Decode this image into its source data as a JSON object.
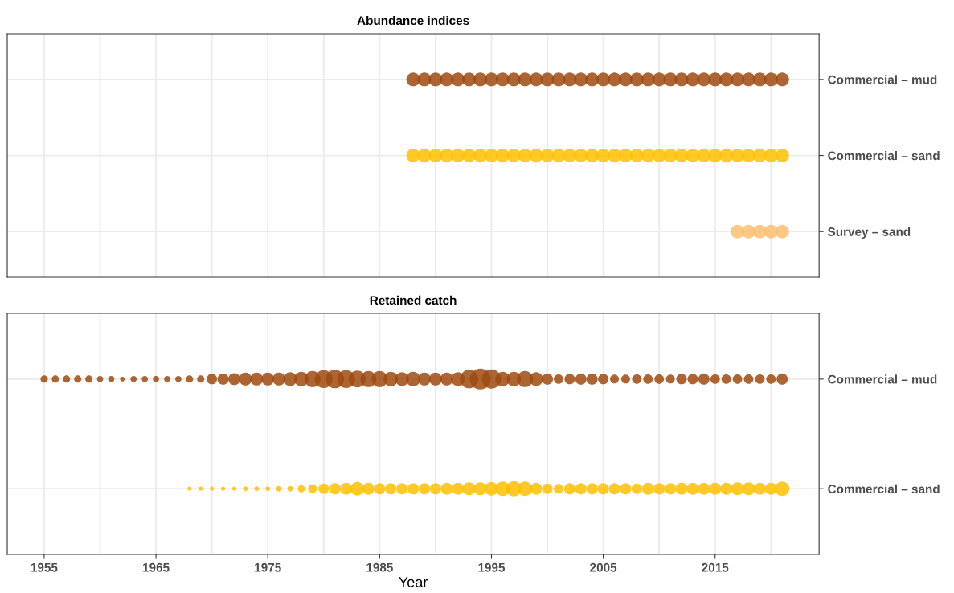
{
  "chart_data": [
    {
      "type": "bubble",
      "title": "Abundance indices",
      "orientation": "horizontal",
      "categories": [
        "Commercial – mud",
        "Commercial – sand",
        "Survey – sand"
      ],
      "xlim": [
        1951.7,
        2024.3
      ],
      "xticks": [
        1955,
        {
          "value": 1960,
          "label": null
        },
        1965,
        {
          "value": 1970,
          "label": null
        },
        1975,
        {
          "value": 1980,
          "label": null
        },
        1985,
        {
          "value": 1990,
          "label": null
        },
        1995,
        {
          "value": 2000,
          "label": null
        },
        2005,
        {
          "value": 2010,
          "label": null
        },
        2015,
        {
          "value": 2020,
          "label": null
        }
      ],
      "tick_labels": "y",
      "grid": true,
      "series": [
        {
          "values": [
            1988,
            1988,
            null
          ],
          "sizes": [
            1,
            1,
            null
          ],
          "colors": [
            "#9e4a0f",
            "#ffc000",
            null
          ]
        },
        {
          "values": [
            1989,
            1989,
            null
          ],
          "sizes": [
            1,
            1,
            null
          ],
          "colors": [
            "#9e4a0f",
            "#ffc000",
            null
          ]
        },
        {
          "values": [
            1990,
            1990,
            null
          ],
          "sizes": [
            1,
            1,
            null
          ],
          "colors": [
            "#9e4a0f",
            "#ffc000",
            null
          ]
        },
        {
          "values": [
            1991,
            1991,
            null
          ],
          "sizes": [
            1,
            1,
            null
          ],
          "colors": [
            "#9e4a0f",
            "#ffc000",
            null
          ]
        },
        {
          "values": [
            1992,
            1992,
            null
          ],
          "sizes": [
            1,
            1,
            null
          ],
          "colors": [
            "#9e4a0f",
            "#ffc000",
            null
          ]
        },
        {
          "values": [
            1993,
            1993,
            null
          ],
          "sizes": [
            1,
            1,
            null
          ],
          "colors": [
            "#9e4a0f",
            "#ffc000",
            null
          ]
        },
        {
          "values": [
            1994,
            1994,
            null
          ],
          "sizes": [
            1,
            1,
            null
          ],
          "colors": [
            "#9e4a0f",
            "#ffc000",
            null
          ]
        },
        {
          "values": [
            1995,
            1995,
            null
          ],
          "sizes": [
            1,
            1,
            null
          ],
          "colors": [
            "#9e4a0f",
            "#ffc000",
            null
          ]
        },
        {
          "values": [
            1996,
            1996,
            null
          ],
          "sizes": [
            1,
            1,
            null
          ],
          "colors": [
            "#9e4a0f",
            "#ffc000",
            null
          ]
        },
        {
          "values": [
            1997,
            1997,
            null
          ],
          "sizes": [
            1,
            1,
            null
          ],
          "colors": [
            "#9e4a0f",
            "#ffc000",
            null
          ]
        },
        {
          "values": [
            1998,
            1998,
            null
          ],
          "sizes": [
            1,
            1,
            null
          ],
          "colors": [
            "#9e4a0f",
            "#ffc000",
            null
          ]
        },
        {
          "values": [
            1999,
            1999,
            null
          ],
          "sizes": [
            1,
            1,
            null
          ],
          "colors": [
            "#9e4a0f",
            "#ffc000",
            null
          ]
        },
        {
          "values": [
            2000,
            2000,
            null
          ],
          "sizes": [
            1,
            1,
            null
          ],
          "colors": [
            "#9e4a0f",
            "#ffc000",
            null
          ]
        },
        {
          "values": [
            2001,
            2001,
            null
          ],
          "sizes": [
            1,
            1,
            null
          ],
          "colors": [
            "#9e4a0f",
            "#ffc000",
            null
          ]
        },
        {
          "values": [
            2002,
            2002,
            null
          ],
          "sizes": [
            1,
            1,
            null
          ],
          "colors": [
            "#9e4a0f",
            "#ffc000",
            null
          ]
        },
        {
          "values": [
            2003,
            2003,
            null
          ],
          "sizes": [
            1,
            1,
            null
          ],
          "colors": [
            "#9e4a0f",
            "#ffc000",
            null
          ]
        },
        {
          "values": [
            2004,
            2004,
            null
          ],
          "sizes": [
            1,
            1,
            null
          ],
          "colors": [
            "#9e4a0f",
            "#ffc000",
            null
          ]
        },
        {
          "values": [
            2005,
            2005,
            null
          ],
          "sizes": [
            1,
            1,
            null
          ],
          "colors": [
            "#9e4a0f",
            "#ffc000",
            null
          ]
        },
        {
          "values": [
            2006,
            2006,
            null
          ],
          "sizes": [
            1,
            1,
            null
          ],
          "colors": [
            "#9e4a0f",
            "#ffc000",
            null
          ]
        },
        {
          "values": [
            2007,
            2007,
            null
          ],
          "sizes": [
            1,
            1,
            null
          ],
          "colors": [
            "#9e4a0f",
            "#ffc000",
            null
          ]
        },
        {
          "values": [
            2008,
            2008,
            null
          ],
          "sizes": [
            1,
            1,
            null
          ],
          "colors": [
            "#9e4a0f",
            "#ffc000",
            null
          ]
        },
        {
          "values": [
            2009,
            2009,
            null
          ],
          "sizes": [
            1,
            1,
            null
          ],
          "colors": [
            "#9e4a0f",
            "#ffc000",
            null
          ]
        },
        {
          "values": [
            2010,
            2010,
            null
          ],
          "sizes": [
            1,
            1,
            null
          ],
          "colors": [
            "#9e4a0f",
            "#ffc000",
            null
          ]
        },
        {
          "values": [
            2011,
            2011,
            null
          ],
          "sizes": [
            1,
            1,
            null
          ],
          "colors": [
            "#9e4a0f",
            "#ffc000",
            null
          ]
        },
        {
          "values": [
            2012,
            2012,
            null
          ],
          "sizes": [
            1,
            1,
            null
          ],
          "colors": [
            "#9e4a0f",
            "#ffc000",
            null
          ]
        },
        {
          "values": [
            2013,
            2013,
            null
          ],
          "sizes": [
            1,
            1,
            null
          ],
          "colors": [
            "#9e4a0f",
            "#ffc000",
            null
          ]
        },
        {
          "values": [
            2014,
            2014,
            null
          ],
          "sizes": [
            1,
            1,
            null
          ],
          "colors": [
            "#9e4a0f",
            "#ffc000",
            null
          ]
        },
        {
          "values": [
            2015,
            2015,
            null
          ],
          "sizes": [
            1,
            1,
            null
          ],
          "colors": [
            "#9e4a0f",
            "#ffc000",
            null
          ]
        },
        {
          "values": [
            2016,
            2016,
            null
          ],
          "sizes": [
            1,
            1,
            null
          ],
          "colors": [
            "#9e4a0f",
            "#ffc000",
            null
          ]
        },
        {
          "values": [
            2017,
            2017,
            2017
          ],
          "sizes": [
            1,
            1,
            1
          ],
          "colors": [
            "#9e4a0f",
            "#ffc000",
            "#fdbe6e"
          ]
        },
        {
          "values": [
            2018,
            2018,
            2018
          ],
          "sizes": [
            1,
            1,
            1
          ],
          "colors": [
            "#9e4a0f",
            "#ffc000",
            "#fdbe6e"
          ]
        },
        {
          "values": [
            2019,
            2019,
            2019
          ],
          "sizes": [
            1,
            1,
            1
          ],
          "colors": [
            "#9e4a0f",
            "#ffc000",
            "#fdbe6e"
          ]
        },
        {
          "values": [
            2020,
            2020,
            2020
          ],
          "sizes": [
            1,
            1,
            1
          ],
          "colors": [
            "#9e4a0f",
            "#ffc000",
            "#fdbe6e"
          ]
        },
        {
          "values": [
            2021,
            2021,
            2021
          ],
          "sizes": [
            1,
            1,
            1
          ],
          "colors": [
            "#9e4a0f",
            "#ffc000",
            "#fdbe6e"
          ]
        }
      ]
    },
    {
      "type": "bubble",
      "title": "Retained catch",
      "xlabel": "Year",
      "orientation": "horizontal",
      "categories": [
        "Commercial – mud",
        "Commercial – sand"
      ],
      "xlim": [
        1951.7,
        2024.3
      ],
      "xticks": [
        1955,
        {
          "value": 1960,
          "label": null
        },
        1965,
        {
          "value": 1970,
          "label": null
        },
        1975,
        {
          "value": 1980,
          "label": null
        },
        1985,
        {
          "value": 1990,
          "label": null
        },
        1995,
        {
          "value": 2000,
          "label": null
        },
        2005,
        {
          "value": 2010,
          "label": null
        },
        2015,
        {
          "value": 2020,
          "label": null
        }
      ],
      "grid": true,
      "series": [
        {
          "values": [
            1955,
            null
          ],
          "sizes": [
            0.12,
            null
          ],
          "colors": [
            "#9e4a0f",
            null
          ]
        },
        {
          "values": [
            1956,
            null
          ],
          "sizes": [
            0.12,
            null
          ],
          "colors": [
            "#9e4a0f",
            null
          ]
        },
        {
          "values": [
            1957,
            null
          ],
          "sizes": [
            0.12,
            null
          ],
          "colors": [
            "#9e4a0f",
            null
          ]
        },
        {
          "values": [
            1958,
            null
          ],
          "sizes": [
            0.12,
            null
          ],
          "colors": [
            "#9e4a0f",
            null
          ]
        },
        {
          "values": [
            1959,
            null
          ],
          "sizes": [
            0.12,
            null
          ],
          "colors": [
            "#9e4a0f",
            null
          ]
        },
        {
          "values": [
            1960,
            null
          ],
          "sizes": [
            0.09,
            null
          ],
          "colors": [
            "#9e4a0f",
            null
          ]
        },
        {
          "values": [
            1961,
            null
          ],
          "sizes": [
            0.09,
            null
          ],
          "colors": [
            "#9e4a0f",
            null
          ]
        },
        {
          "values": [
            1962,
            null
          ],
          "sizes": [
            0.05,
            null
          ],
          "colors": [
            "#9e4a0f",
            null
          ]
        },
        {
          "values": [
            1963,
            null
          ],
          "sizes": [
            0.09,
            null
          ],
          "colors": [
            "#9e4a0f",
            null
          ]
        },
        {
          "values": [
            1964,
            null
          ],
          "sizes": [
            0.09,
            null
          ],
          "colors": [
            "#9e4a0f",
            null
          ]
        },
        {
          "values": [
            1965,
            null
          ],
          "sizes": [
            0.09,
            null
          ],
          "colors": [
            "#9e4a0f",
            null
          ]
        },
        {
          "values": [
            1966,
            null
          ],
          "sizes": [
            0.09,
            null
          ],
          "colors": [
            "#9e4a0f",
            null
          ]
        },
        {
          "values": [
            1967,
            null
          ],
          "sizes": [
            0.09,
            null
          ],
          "colors": [
            "#9e4a0f",
            null
          ]
        },
        {
          "values": [
            1968,
            1968
          ],
          "sizes": [
            0.12,
            0.04
          ],
          "colors": [
            "#9e4a0f",
            "#ffc000"
          ]
        },
        {
          "values": [
            1969,
            1969
          ],
          "sizes": [
            0.12,
            0.04
          ],
          "colors": [
            "#9e4a0f",
            "#ffc000"
          ]
        },
        {
          "values": [
            1970,
            1970
          ],
          "sizes": [
            0.25,
            0.04
          ],
          "colors": [
            "#9e4a0f",
            "#ffc000"
          ]
        },
        {
          "values": [
            1971,
            1971
          ],
          "sizes": [
            0.29,
            0.04
          ],
          "colors": [
            "#9e4a0f",
            "#ffc000"
          ]
        },
        {
          "values": [
            1972,
            1972
          ],
          "sizes": [
            0.33,
            0.04
          ],
          "colors": [
            "#9e4a0f",
            "#ffc000"
          ]
        },
        {
          "values": [
            1973,
            1973
          ],
          "sizes": [
            0.38,
            0.05
          ],
          "colors": [
            "#9e4a0f",
            "#ffc000"
          ]
        },
        {
          "values": [
            1974,
            1974
          ],
          "sizes": [
            0.38,
            0.05
          ],
          "colors": [
            "#9e4a0f",
            "#ffc000"
          ]
        },
        {
          "values": [
            1975,
            1975
          ],
          "sizes": [
            0.38,
            0.05
          ],
          "colors": [
            "#9e4a0f",
            "#ffc000"
          ]
        },
        {
          "values": [
            1976,
            1976
          ],
          "sizes": [
            0.38,
            0.07
          ],
          "colors": [
            "#9e4a0f",
            "#ffc000"
          ]
        },
        {
          "values": [
            1977,
            1977
          ],
          "sizes": [
            0.43,
            0.07
          ],
          "colors": [
            "#9e4a0f",
            "#ffc000"
          ]
        },
        {
          "values": [
            1978,
            1978
          ],
          "sizes": [
            0.48,
            0.12
          ],
          "colors": [
            "#9e4a0f",
            "#ffc000"
          ]
        },
        {
          "values": [
            1979,
            1979
          ],
          "sizes": [
            0.59,
            0.18
          ],
          "colors": [
            "#9e4a0f",
            "#ffc000"
          ]
        },
        {
          "values": [
            1980,
            1980
          ],
          "sizes": [
            0.72,
            0.25
          ],
          "colors": [
            "#9e4a0f",
            "#ffc000"
          ]
        },
        {
          "values": [
            1981,
            1981
          ],
          "sizes": [
            0.78,
            0.29
          ],
          "colors": [
            "#9e4a0f",
            "#ffc000"
          ]
        },
        {
          "values": [
            1982,
            1982
          ],
          "sizes": [
            0.72,
            0.33
          ],
          "colors": [
            "#9e4a0f",
            "#ffc000"
          ]
        },
        {
          "values": [
            1983,
            1983
          ],
          "sizes": [
            0.65,
            0.43
          ],
          "colors": [
            "#9e4a0f",
            "#ffc000"
          ]
        },
        {
          "values": [
            1984,
            1984
          ],
          "sizes": [
            0.59,
            0.33
          ],
          "colors": [
            "#9e4a0f",
            "#ffc000"
          ]
        },
        {
          "values": [
            1985,
            1985
          ],
          "sizes": [
            0.59,
            0.29
          ],
          "colors": [
            "#9e4a0f",
            "#ffc000"
          ]
        },
        {
          "values": [
            1986,
            1986
          ],
          "sizes": [
            0.48,
            0.29
          ],
          "colors": [
            "#9e4a0f",
            "#ffc000"
          ]
        },
        {
          "values": [
            1987,
            1987
          ],
          "sizes": [
            0.43,
            0.29
          ],
          "colors": [
            "#9e4a0f",
            "#ffc000"
          ]
        },
        {
          "values": [
            1988,
            1988
          ],
          "sizes": [
            0.48,
            0.29
          ],
          "colors": [
            "#9e4a0f",
            "#ffc000"
          ]
        },
        {
          "values": [
            1989,
            1989
          ],
          "sizes": [
            0.38,
            0.29
          ],
          "colors": [
            "#9e4a0f",
            "#ffc000"
          ]
        },
        {
          "values": [
            1990,
            1990
          ],
          "sizes": [
            0.38,
            0.29
          ],
          "colors": [
            "#9e4a0f",
            "#ffc000"
          ]
        },
        {
          "values": [
            1991,
            1991
          ],
          "sizes": [
            0.38,
            0.33
          ],
          "colors": [
            "#9e4a0f",
            "#ffc000"
          ]
        },
        {
          "values": [
            1992,
            1992
          ],
          "sizes": [
            0.43,
            0.33
          ],
          "colors": [
            "#9e4a0f",
            "#ffc000"
          ]
        },
        {
          "values": [
            1993,
            1993
          ],
          "sizes": [
            0.78,
            0.38
          ],
          "colors": [
            "#9e4a0f",
            "#ffc000"
          ]
        },
        {
          "values": [
            1994,
            1994
          ],
          "sizes": [
            1,
            0.38
          ],
          "colors": [
            "#9e4a0f",
            "#ffc000"
          ]
        },
        {
          "values": [
            1995,
            1995
          ],
          "sizes": [
            0.85,
            0.43
          ],
          "colors": [
            "#9e4a0f",
            "#ffc000"
          ]
        },
        {
          "values": [
            1996,
            1996
          ],
          "sizes": [
            0.48,
            0.48
          ],
          "colors": [
            "#9e4a0f",
            "#ffc000"
          ]
        },
        {
          "values": [
            1997,
            1997
          ],
          "sizes": [
            0.48,
            0.53
          ],
          "colors": [
            "#9e4a0f",
            "#ffc000"
          ]
        },
        {
          "values": [
            1998,
            1998
          ],
          "sizes": [
            0.59,
            0.48
          ],
          "colors": [
            "#9e4a0f",
            "#ffc000"
          ]
        },
        {
          "values": [
            1999,
            1999
          ],
          "sizes": [
            0.43,
            0.33
          ],
          "colors": [
            "#9e4a0f",
            "#ffc000"
          ]
        },
        {
          "values": [
            2000,
            2000
          ],
          "sizes": [
            0.29,
            0.25
          ],
          "colors": [
            "#9e4a0f",
            "#ffc000"
          ]
        },
        {
          "values": [
            2001,
            2001
          ],
          "sizes": [
            0.21,
            0.21
          ],
          "colors": [
            "#9e4a0f",
            "#ffc000"
          ]
        },
        {
          "values": [
            2002,
            2002
          ],
          "sizes": [
            0.25,
            0.29
          ],
          "colors": [
            "#9e4a0f",
            "#ffc000"
          ]
        },
        {
          "values": [
            2003,
            2003
          ],
          "sizes": [
            0.29,
            0.29
          ],
          "colors": [
            "#9e4a0f",
            "#ffc000"
          ]
        },
        {
          "values": [
            2004,
            2004
          ],
          "sizes": [
            0.29,
            0.29
          ],
          "colors": [
            "#9e4a0f",
            "#ffc000"
          ]
        },
        {
          "values": [
            2005,
            2005
          ],
          "sizes": [
            0.25,
            0.29
          ],
          "colors": [
            "#9e4a0f",
            "#ffc000"
          ]
        },
        {
          "values": [
            2006,
            2006
          ],
          "sizes": [
            0.18,
            0.29
          ],
          "colors": [
            "#9e4a0f",
            "#ffc000"
          ]
        },
        {
          "values": [
            2007,
            2007
          ],
          "sizes": [
            0.18,
            0.29
          ],
          "colors": [
            "#9e4a0f",
            "#ffc000"
          ]
        },
        {
          "values": [
            2008,
            2008
          ],
          "sizes": [
            0.21,
            0.25
          ],
          "colors": [
            "#9e4a0f",
            "#ffc000"
          ]
        },
        {
          "values": [
            2009,
            2009
          ],
          "sizes": [
            0.21,
            0.33
          ],
          "colors": [
            "#9e4a0f",
            "#ffc000"
          ]
        },
        {
          "values": [
            2010,
            2010
          ],
          "sizes": [
            0.21,
            0.29
          ],
          "colors": [
            "#9e4a0f",
            "#ffc000"
          ]
        },
        {
          "values": [
            2011,
            2011
          ],
          "sizes": [
            0.18,
            0.29
          ],
          "colors": [
            "#9e4a0f",
            "#ffc000"
          ]
        },
        {
          "values": [
            2012,
            2012
          ],
          "sizes": [
            0.25,
            0.33
          ],
          "colors": [
            "#9e4a0f",
            "#ffc000"
          ]
        },
        {
          "values": [
            2013,
            2013
          ],
          "sizes": [
            0.25,
            0.33
          ],
          "colors": [
            "#9e4a0f",
            "#ffc000"
          ]
        },
        {
          "values": [
            2014,
            2014
          ],
          "sizes": [
            0.29,
            0.33
          ],
          "colors": [
            "#9e4a0f",
            "#ffc000"
          ]
        },
        {
          "values": [
            2015,
            2015
          ],
          "sizes": [
            0.21,
            0.33
          ],
          "colors": [
            "#9e4a0f",
            "#ffc000"
          ]
        },
        {
          "values": [
            2016,
            2016
          ],
          "sizes": [
            0.21,
            0.33
          ],
          "colors": [
            "#9e4a0f",
            "#ffc000"
          ]
        },
        {
          "values": [
            2017,
            2017
          ],
          "sizes": [
            0.21,
            0.38
          ],
          "colors": [
            "#9e4a0f",
            "#ffc000"
          ]
        },
        {
          "values": [
            2018,
            2018
          ],
          "sizes": [
            0.21,
            0.38
          ],
          "colors": [
            "#9e4a0f",
            "#ffc000"
          ]
        },
        {
          "values": [
            2019,
            2019
          ],
          "sizes": [
            0.21,
            0.33
          ],
          "colors": [
            "#9e4a0f",
            "#ffc000"
          ]
        },
        {
          "values": [
            2020,
            2020
          ],
          "sizes": [
            0.21,
            0.33
          ],
          "colors": [
            "#9e4a0f",
            "#ffc000"
          ]
        },
        {
          "values": [
            2021,
            2021
          ],
          "sizes": [
            0.29,
            0.48
          ],
          "colors": [
            "#9e4a0f",
            "#ffc000"
          ]
        }
      ]
    }
  ]
}
